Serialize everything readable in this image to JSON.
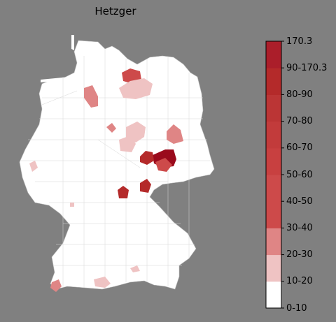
{
  "title": "Hetzger",
  "colorbar": {
    "labels": [
      "170.3",
      "90-170.3",
      "80-90",
      "70-80",
      "60-70",
      "50-60",
      "40-50",
      "30-40",
      "20-30",
      "10-20",
      "0-10"
    ],
    "colors": [
      "#ffffff",
      "#efc3c3",
      "#df8585",
      "#cd4a4a",
      "#cd4a4a",
      "#c84040",
      "#c23b3b",
      "#bb3535",
      "#b42a2a",
      "#ab1e2a",
      "#9a0a1c"
    ]
  },
  "colors": {
    "background": "#808080",
    "land": "#ffffff",
    "border": "#c8c8c8"
  }
}
